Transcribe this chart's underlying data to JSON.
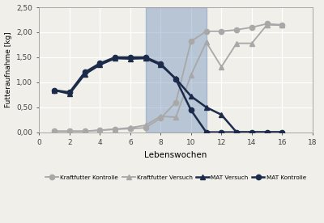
{
  "xlabel": "Lebenswochen",
  "ylabel": "Futteraufnahme [kg]",
  "xlim": [
    0,
    18
  ],
  "ylim": [
    0.0,
    2.5
  ],
  "yticks": [
    0.0,
    0.5,
    1.0,
    1.5,
    2.0,
    2.5
  ],
  "ytick_labels": [
    "0,00",
    "0,50",
    "1,00",
    "1,50",
    "2,00",
    "2,50"
  ],
  "xticks": [
    0,
    2,
    4,
    6,
    8,
    10,
    12,
    14,
    16,
    18
  ],
  "blue_zone_x_start": 7,
  "blue_zone_x_end": 11,
  "blue_zone_color": "#6b8cba",
  "blue_zone_alpha": 0.42,
  "kraftfutter_kontrolle_x": [
    1,
    2,
    3,
    4,
    5,
    6,
    7,
    8,
    9,
    10,
    11,
    12,
    13,
    14,
    15,
    16
  ],
  "kraftfutter_kontrolle_y": [
    0.02,
    0.02,
    0.02,
    0.04,
    0.06,
    0.07,
    0.09,
    0.28,
    0.6,
    1.82,
    2.02,
    2.02,
    2.05,
    2.1,
    2.17,
    2.15
  ],
  "kraftfutter_versuch_x": [
    1,
    2,
    3,
    4,
    5,
    6,
    7,
    8,
    9,
    10,
    11,
    12,
    13,
    14,
    15,
    16
  ],
  "kraftfutter_versuch_y": [
    0.02,
    0.02,
    0.02,
    0.04,
    0.06,
    0.09,
    0.14,
    0.32,
    0.3,
    1.15,
    1.8,
    1.31,
    1.78,
    1.78,
    2.15,
    2.14
  ],
  "mat_versuch_x": [
    1,
    2,
    3,
    4,
    5,
    6,
    7,
    8,
    9,
    10,
    11,
    12,
    13,
    14,
    15,
    16
  ],
  "mat_versuch_y": [
    0.84,
    0.77,
    1.16,
    1.35,
    1.48,
    1.47,
    1.48,
    1.35,
    1.07,
    0.72,
    0.5,
    0.35,
    0.0,
    0.0,
    0.0,
    0.0
  ],
  "mat_kontrolle_x": [
    1,
    2,
    3,
    4,
    5,
    6,
    7,
    8,
    9,
    10,
    11,
    12,
    13,
    14,
    15,
    16
  ],
  "mat_kontrolle_y": [
    0.84,
    0.8,
    1.2,
    1.38,
    1.5,
    1.5,
    1.5,
    1.37,
    1.06,
    0.44,
    0.0,
    0.0,
    0.0,
    0.0,
    0.0,
    0.0
  ],
  "kk_color": "#a8a8a8",
  "kv_color": "#a8a8a8",
  "mv_color": "#1c2b4a",
  "mk_color": "#1c2b4a",
  "kk_marker": "o",
  "kv_marker": "^",
  "mv_marker": "^",
  "mk_marker": "o",
  "kk_linewidth": 1.3,
  "kv_linewidth": 1.3,
  "mv_linewidth": 1.8,
  "mk_linewidth": 1.8,
  "markersize": 4.5,
  "legend_labels": [
    "Kraftfutter Kontrolle",
    "Kraftfutter Versuch",
    "MAT Versuch",
    "MAT Kontrolle"
  ],
  "background_color": "#f0efea",
  "grid_color": "#ffffff"
}
